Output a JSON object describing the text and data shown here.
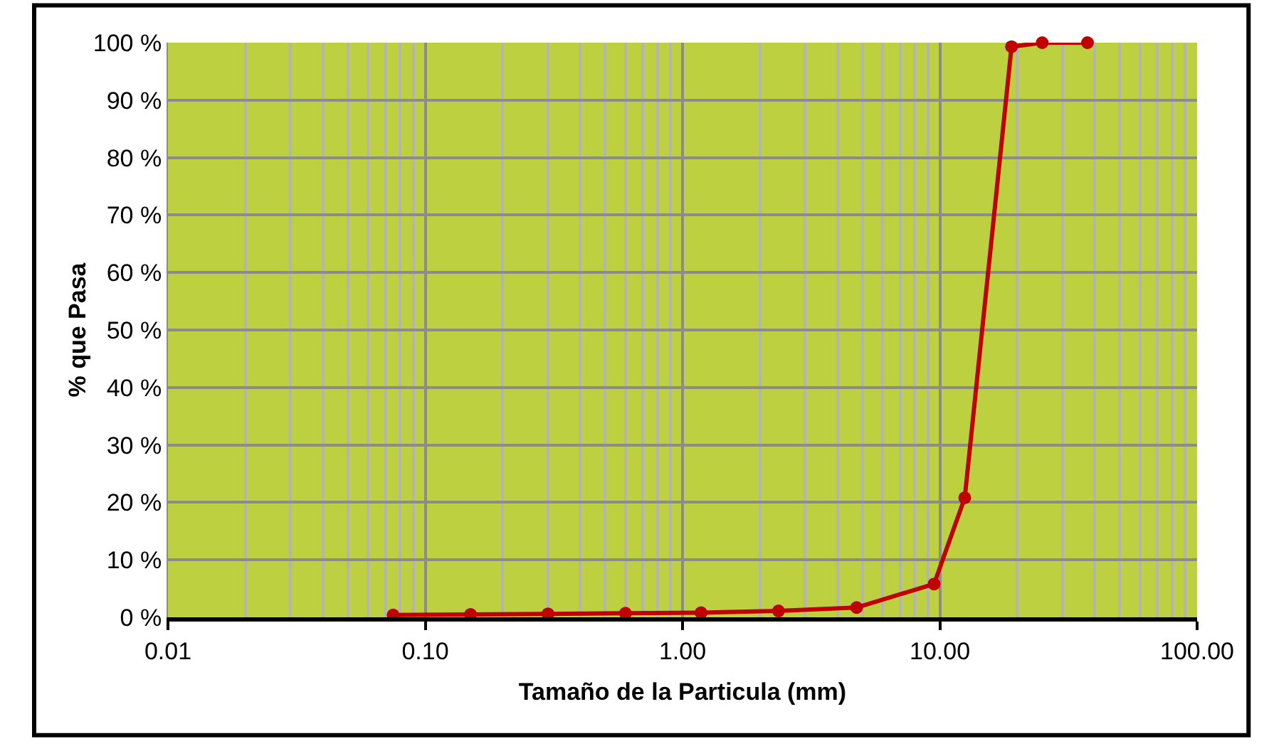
{
  "chart_data": {
    "type": "line",
    "xlabel": "Tamaño de la Particula (mm)",
    "ylabel": "% que Pasa",
    "log": "x",
    "grid": true,
    "marker": "circle",
    "line_style": "solid",
    "legend": false,
    "x": [
      0.075,
      0.15,
      0.3,
      0.6,
      1.18,
      2.36,
      4.75,
      9.5,
      12.5,
      19,
      25,
      37.5
    ],
    "series": [
      {
        "color": "#c00000",
        "values": [
          0.4,
          0.5,
          0.6,
          0.7,
          0.8,
          1.1,
          1.7,
          5.8,
          20.8,
          99.3,
          100,
          100
        ]
      }
    ],
    "xlim": [
      0.01,
      100
    ],
    "xticks": [
      {
        "value": 0.01,
        "label": "0.01"
      },
      {
        "value": 0.1,
        "label": "0.10"
      },
      {
        "value": 1,
        "label": "1.00"
      },
      {
        "value": 10,
        "label": "10.00"
      },
      {
        "value": 100,
        "label": "100.00"
      }
    ],
    "ylim": [
      0,
      100
    ],
    "yticks": [
      {
        "value": 0,
        "label": "0 %"
      },
      {
        "value": 10,
        "label": "10 %"
      },
      {
        "value": 20,
        "label": "20 %"
      },
      {
        "value": 30,
        "label": "30 %"
      },
      {
        "value": 40,
        "label": "40 %"
      },
      {
        "value": 50,
        "label": "50 %"
      },
      {
        "value": 60,
        "label": "60 %"
      },
      {
        "value": 70,
        "label": "70 %"
      },
      {
        "value": 80,
        "label": "80 %"
      },
      {
        "value": 90,
        "label": "90 %"
      },
      {
        "value": 100,
        "label": "100 %"
      }
    ]
  }
}
